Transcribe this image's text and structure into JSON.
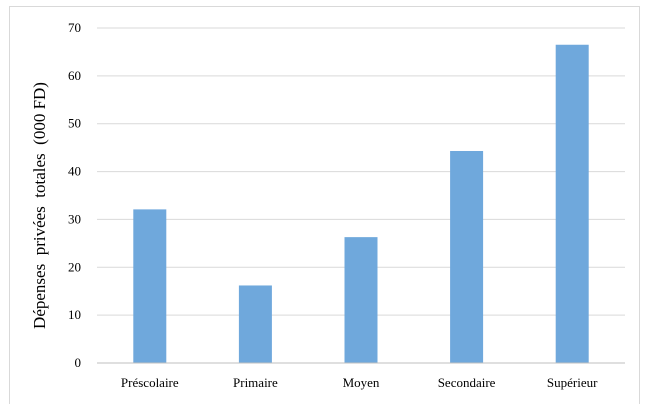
{
  "chart_data": {
    "type": "bar",
    "title": "",
    "xlabel": "",
    "ylabel": "Dépenses  privées  totales  (000 FD)",
    "categories": [
      "Préscolaire",
      "Primaire",
      "Moyen",
      "Secondaire",
      "Supérieur"
    ],
    "values": [
      32.1,
      16.2,
      26.3,
      44.3,
      66.5
    ],
    "ylim": [
      0,
      70
    ],
    "yticks": [
      "0",
      "10",
      "20",
      "30",
      "40",
      "50",
      "60",
      "70"
    ],
    "grid": true,
    "legend": "none",
    "colors": {
      "bar": "#6fa8dc",
      "grid": "#d9d9d9",
      "axis": "#bfbfbf"
    }
  }
}
